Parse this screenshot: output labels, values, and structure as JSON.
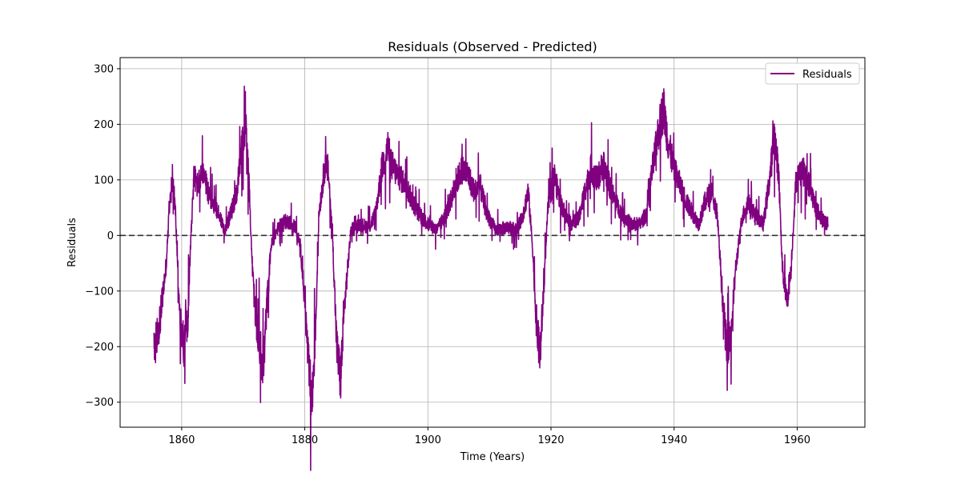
{
  "chart_data": {
    "type": "line",
    "title": "Residuals (Observed - Predicted)",
    "xlabel": "Time (Years)",
    "ylabel": "Residuals",
    "xlim": [
      1850,
      1971
    ],
    "ylim": [
      -345,
      320
    ],
    "xticks": [
      1860,
      1880,
      1900,
      1920,
      1940,
      1960
    ],
    "yticks": [
      -300,
      -200,
      -100,
      0,
      100,
      200,
      300
    ],
    "grid": true,
    "legend_position": "top-right",
    "reference_line": {
      "y": 0,
      "style": "dashed",
      "color": "#333333"
    },
    "series": [
      {
        "name": "Residuals",
        "color": "#800080",
        "anchors": [
          [
            1855.5,
            -210
          ],
          [
            1856.5,
            -150
          ],
          [
            1857.5,
            -50
          ],
          [
            1858.0,
            50
          ],
          [
            1858.6,
            100
          ],
          [
            1859.0,
            40
          ],
          [
            1859.7,
            -150
          ],
          [
            1860.4,
            -200
          ],
          [
            1861.0,
            -150
          ],
          [
            1861.5,
            0
          ],
          [
            1862.0,
            110
          ],
          [
            1862.5,
            90
          ],
          [
            1863.5,
            110
          ],
          [
            1864.5,
            70
          ],
          [
            1866.0,
            40
          ],
          [
            1867.0,
            10
          ],
          [
            1868.0,
            40
          ],
          [
            1869.0,
            80
          ],
          [
            1869.8,
            160
          ],
          [
            1870.4,
            200
          ],
          [
            1870.9,
            100
          ],
          [
            1871.5,
            -60
          ],
          [
            1872.0,
            -150
          ],
          [
            1872.7,
            -200
          ],
          [
            1873.3,
            -240
          ],
          [
            1873.8,
            -130
          ],
          [
            1874.5,
            -20
          ],
          [
            1875.5,
            10
          ],
          [
            1876.5,
            25
          ],
          [
            1877.5,
            25
          ],
          [
            1878.5,
            15
          ],
          [
            1879.3,
            -20
          ],
          [
            1880.0,
            -120
          ],
          [
            1880.7,
            -250
          ],
          [
            1881.2,
            -300
          ],
          [
            1881.8,
            -150
          ],
          [
            1882.3,
            40
          ],
          [
            1883.2,
            120
          ],
          [
            1883.8,
            120
          ],
          [
            1884.5,
            0
          ],
          [
            1885.2,
            -200
          ],
          [
            1885.8,
            -260
          ],
          [
            1886.5,
            -120
          ],
          [
            1887.5,
            10
          ],
          [
            1889.0,
            20
          ],
          [
            1890.5,
            15
          ],
          [
            1891.5,
            40
          ],
          [
            1892.5,
            120
          ],
          [
            1893.5,
            160
          ],
          [
            1894.0,
            130
          ],
          [
            1895.0,
            110
          ],
          [
            1896.5,
            90
          ],
          [
            1897.5,
            60
          ],
          [
            1898.5,
            40
          ],
          [
            1900.0,
            20
          ],
          [
            1901.5,
            10
          ],
          [
            1903.0,
            40
          ],
          [
            1904.5,
            90
          ],
          [
            1905.5,
            120
          ],
          [
            1906.5,
            110
          ],
          [
            1907.5,
            80
          ],
          [
            1908.5,
            90
          ],
          [
            1909.5,
            40
          ],
          [
            1911.0,
            10
          ],
          [
            1913.0,
            15
          ],
          [
            1914.5,
            10
          ],
          [
            1915.5,
            40
          ],
          [
            1916.3,
            80
          ],
          [
            1917.0,
            -20
          ],
          [
            1917.6,
            -150
          ],
          [
            1918.2,
            -220
          ],
          [
            1918.8,
            -100
          ],
          [
            1919.5,
            50
          ],
          [
            1920.5,
            110
          ],
          [
            1921.5,
            60
          ],
          [
            1923.0,
            20
          ],
          [
            1924.5,
            30
          ],
          [
            1925.5,
            80
          ],
          [
            1926.5,
            120
          ],
          [
            1927.5,
            100
          ],
          [
            1928.5,
            130
          ],
          [
            1929.5,
            90
          ],
          [
            1930.5,
            60
          ],
          [
            1931.5,
            40
          ],
          [
            1933.0,
            20
          ],
          [
            1934.5,
            20
          ],
          [
            1935.5,
            40
          ],
          [
            1936.5,
            120
          ],
          [
            1937.5,
            190
          ],
          [
            1938.3,
            230
          ],
          [
            1939.0,
            170
          ],
          [
            1940.0,
            120
          ],
          [
            1941.0,
            90
          ],
          [
            1942.0,
            60
          ],
          [
            1943.0,
            40
          ],
          [
            1944.0,
            20
          ],
          [
            1945.0,
            60
          ],
          [
            1946.0,
            80
          ],
          [
            1947.0,
            40
          ],
          [
            1947.8,
            -100
          ],
          [
            1948.5,
            -200
          ],
          [
            1949.2,
            -180
          ],
          [
            1950.0,
            -60
          ],
          [
            1951.0,
            30
          ],
          [
            1952.0,
            60
          ],
          [
            1953.0,
            40
          ],
          [
            1954.5,
            20
          ],
          [
            1955.5,
            100
          ],
          [
            1956.3,
            180
          ],
          [
            1957.0,
            110
          ],
          [
            1957.6,
            -60
          ],
          [
            1958.3,
            -120
          ],
          [
            1959.0,
            -60
          ],
          [
            1959.8,
            100
          ],
          [
            1960.8,
            120
          ],
          [
            1962.0,
            90
          ],
          [
            1963.0,
            50
          ],
          [
            1964.0,
            30
          ],
          [
            1965.0,
            20
          ]
        ]
      }
    ]
  }
}
